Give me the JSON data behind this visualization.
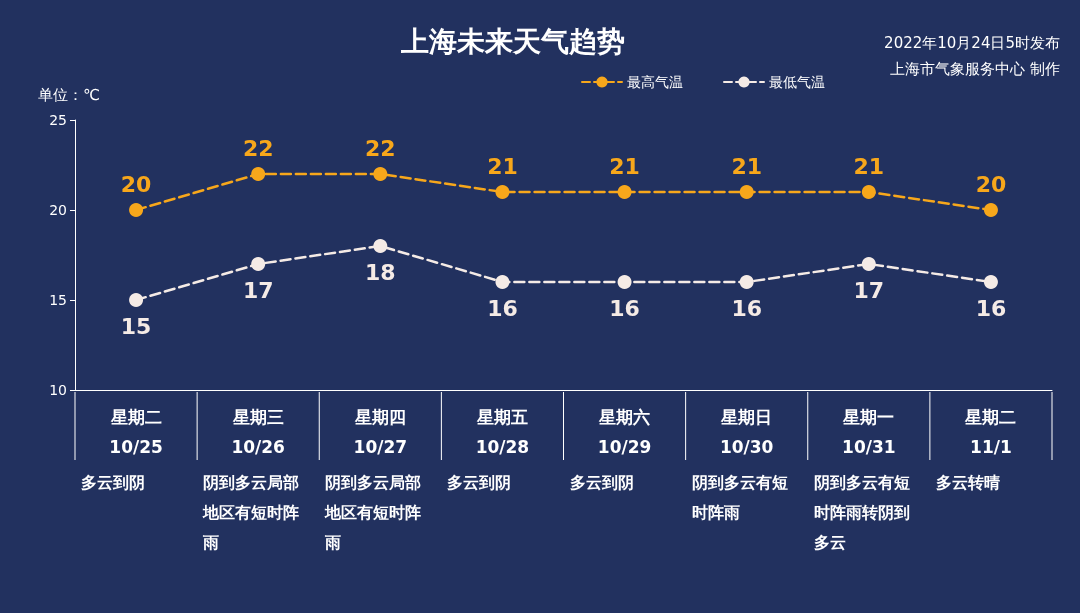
{
  "chart_data": {
    "type": "line",
    "title": "上海未来天气趋势",
    "ylabel": "单位：℃",
    "categories": [
      "星期二\n10/25",
      "星期三\n10/26",
      "星期四\n10/27",
      "星期五\n10/28",
      "星期六\n10/29",
      "星期日\n10/30",
      "星期一\n10/31",
      "星期二\n11/1"
    ],
    "series": [
      {
        "name": "最高气温",
        "color": "#f7a71b",
        "values": [
          20,
          22,
          22,
          21,
          21,
          21,
          21,
          20
        ]
      },
      {
        "name": "最低气温",
        "color": "#f5ebe6",
        "values": [
          15,
          17,
          18,
          16,
          16,
          16,
          17,
          16
        ]
      }
    ],
    "ylim": [
      10,
      25
    ],
    "yticks": [
      10,
      15,
      20,
      25
    ],
    "grid": false,
    "legend": "top right",
    "marker": "circle",
    "line_style": "dashed",
    "data_labels": true,
    "annotations": [
      "2022年10月24日5时发布",
      "上海市气象服务中心 制作",
      "多云到阴",
      "阴到多云局部地区有短时阵雨",
      "阴到多云局部地区有短时阵雨",
      "多云到阴",
      "多云到阴",
      "阴到多云有短时阵雨",
      "阴到多云有短时阵雨转阴到多云",
      "多云转晴"
    ]
  }
}
